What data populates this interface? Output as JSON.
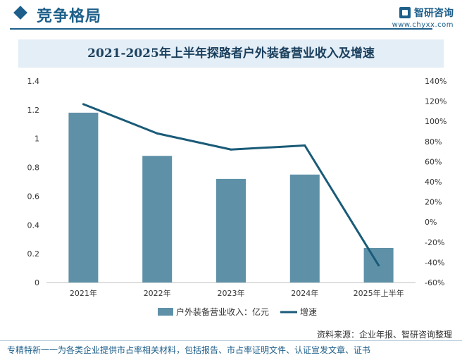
{
  "header": {
    "section_title": "竞争格局",
    "brand_name": "智研咨询",
    "brand_url": "www.chyxx.com"
  },
  "chart_data": {
    "type": "bar",
    "title": "2021-2025年上半年探路者户外装备营业收入及增速",
    "categories": [
      "2021年",
      "2022年",
      "2023年",
      "2024年",
      "2025年上半年"
    ],
    "series": [
      {
        "name": "户外装备营业收入：亿元",
        "type": "bar",
        "axis": "left",
        "color": "#5e91a8",
        "values": [
          1.18,
          0.88,
          0.72,
          0.75,
          0.24
        ]
      },
      {
        "name": "增速",
        "type": "line",
        "axis": "right",
        "color": "#1a5b78",
        "values": [
          117,
          88,
          72,
          76,
          -43
        ]
      }
    ],
    "y_left": {
      "min": 0,
      "max": 1.4,
      "ticks": [
        "0",
        "0.2",
        "0.4",
        "0.6",
        "0.8",
        "1",
        "1.2",
        "1.4"
      ]
    },
    "y_right": {
      "min": -60,
      "max": 140,
      "ticks": [
        "-60%",
        "-40%",
        "-20%",
        "0%",
        "20%",
        "40%",
        "60%",
        "80%",
        "100%",
        "120%",
        "140%"
      ]
    },
    "grid": false,
    "legend": "bottom"
  },
  "source": "资料来源：企业年报、智研咨询整理",
  "footer": "专精特新一一为各类企业提供市占率相关材料，包括报告、市占率证明文件、认证宣发文章、证书"
}
